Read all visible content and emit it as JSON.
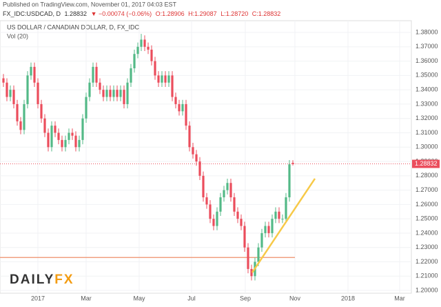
{
  "header": {
    "published": "Published on TradingView.com, November 01, 2017 04:03 EST",
    "symbol": "FX_IDC:USDCAD, D",
    "last": "1.28832",
    "change": "▼ −0.00074 (−0.06%)",
    "open": "O:1.28906",
    "high": "H:1.29087",
    "low": "L:1.28720",
    "close": "C:1.28832"
  },
  "logo": {
    "part1": "DAILY",
    "part2": "FX"
  },
  "chart_data": {
    "type": "candlestick",
    "title": "US DOLLAR / CANADIAN DOLLAR, D, FX_IDC",
    "subtitle": "Vol (20)",
    "up_color": "#53b987",
    "down_color": "#eb4d5c",
    "open": [
      1.348,
      1.345,
      1.335,
      1.34,
      1.33,
      1.318,
      1.312,
      1.33,
      1.35,
      1.356,
      1.345,
      1.33,
      1.32,
      1.31,
      1.3,
      1.315,
      1.31,
      1.305,
      1.3,
      1.305,
      1.31,
      1.308,
      1.3,
      1.305,
      1.32,
      1.335,
      1.345,
      1.356,
      1.345,
      1.34,
      1.335,
      1.34,
      1.335,
      1.34,
      1.335,
      1.34,
      1.33,
      1.345,
      1.355,
      1.365,
      1.37,
      1.375,
      1.37,
      1.368,
      1.36,
      1.35,
      1.345,
      1.35,
      1.345,
      1.35,
      1.335,
      1.33,
      1.325,
      1.33,
      1.315,
      1.3,
      1.295,
      1.29,
      1.28,
      1.265,
      1.26,
      1.25,
      1.245,
      1.255,
      1.265,
      1.27,
      1.275,
      1.265,
      1.255,
      1.25,
      1.245,
      1.23,
      1.215,
      1.21,
      1.22,
      1.23,
      1.24,
      1.245,
      1.24,
      1.25,
      1.255,
      1.25,
      1.25,
      1.265,
      1.28906
    ],
    "high": [
      1.351,
      1.348,
      1.343,
      1.343,
      1.333,
      1.321,
      1.333,
      1.353,
      1.359,
      1.359,
      1.348,
      1.333,
      1.323,
      1.313,
      1.318,
      1.318,
      1.313,
      1.308,
      1.308,
      1.313,
      1.313,
      1.311,
      1.308,
      1.323,
      1.338,
      1.348,
      1.359,
      1.359,
      1.348,
      1.343,
      1.343,
      1.343,
      1.343,
      1.343,
      1.343,
      1.343,
      1.348,
      1.358,
      1.368,
      1.373,
      1.379,
      1.378,
      1.373,
      1.371,
      1.363,
      1.353,
      1.353,
      1.353,
      1.353,
      1.353,
      1.338,
      1.333,
      1.333,
      1.333,
      1.318,
      1.303,
      1.298,
      1.293,
      1.283,
      1.268,
      1.263,
      1.253,
      1.258,
      1.268,
      1.273,
      1.278,
      1.278,
      1.268,
      1.258,
      1.253,
      1.248,
      1.233,
      1.218,
      1.223,
      1.233,
      1.243,
      1.248,
      1.248,
      1.253,
      1.258,
      1.258,
      1.253,
      1.268,
      1.291,
      1.29087
    ],
    "low": [
      1.342,
      1.332,
      1.332,
      1.327,
      1.315,
      1.309,
      1.309,
      1.327,
      1.347,
      1.342,
      1.327,
      1.317,
      1.307,
      1.297,
      1.297,
      1.307,
      1.302,
      1.297,
      1.297,
      1.302,
      1.305,
      1.297,
      1.297,
      1.302,
      1.317,
      1.332,
      1.342,
      1.342,
      1.337,
      1.332,
      1.332,
      1.332,
      1.332,
      1.332,
      1.332,
      1.327,
      1.327,
      1.342,
      1.352,
      1.362,
      1.367,
      1.367,
      1.365,
      1.357,
      1.347,
      1.342,
      1.342,
      1.342,
      1.342,
      1.332,
      1.327,
      1.322,
      1.322,
      1.312,
      1.297,
      1.292,
      1.287,
      1.277,
      1.262,
      1.257,
      1.247,
      1.242,
      1.242,
      1.252,
      1.262,
      1.267,
      1.262,
      1.252,
      1.247,
      1.242,
      1.227,
      1.212,
      1.207,
      1.207,
      1.217,
      1.227,
      1.237,
      1.237,
      1.237,
      1.247,
      1.247,
      1.247,
      1.247,
      1.262,
      1.2872
    ],
    "close": [
      1.345,
      1.335,
      1.34,
      1.33,
      1.318,
      1.312,
      1.33,
      1.35,
      1.356,
      1.345,
      1.33,
      1.32,
      1.31,
      1.3,
      1.315,
      1.31,
      1.305,
      1.3,
      1.305,
      1.31,
      1.308,
      1.3,
      1.305,
      1.32,
      1.335,
      1.345,
      1.356,
      1.345,
      1.34,
      1.335,
      1.34,
      1.335,
      1.34,
      1.335,
      1.34,
      1.33,
      1.345,
      1.355,
      1.365,
      1.37,
      1.375,
      1.37,
      1.368,
      1.36,
      1.35,
      1.345,
      1.35,
      1.345,
      1.35,
      1.335,
      1.33,
      1.325,
      1.33,
      1.315,
      1.3,
      1.295,
      1.29,
      1.28,
      1.265,
      1.26,
      1.25,
      1.245,
      1.255,
      1.265,
      1.27,
      1.275,
      1.265,
      1.255,
      1.25,
      1.245,
      1.23,
      1.215,
      1.21,
      1.22,
      1.23,
      1.24,
      1.245,
      1.24,
      1.25,
      1.255,
      1.25,
      1.25,
      1.265,
      1.288,
      1.28832
    ],
    "xlim": [
      -1,
      118.4
    ],
    "xticks": [
      {
        "value": 10,
        "label": "2017"
      },
      {
        "value": 24,
        "label": "Mar"
      },
      {
        "value": 39.4,
        "label": "May"
      },
      {
        "value": 54.6,
        "label": "Jul"
      },
      {
        "value": 70.2,
        "label": "Sep"
      },
      {
        "value": 84.6,
        "label": "Nov"
      },
      {
        "value": 100,
        "label": "2018"
      },
      {
        "value": 115,
        "label": "Mar"
      }
    ],
    "ylim": [
      1.1981,
      1.3882
    ],
    "yticks": [
      {
        "value": 1.2,
        "label": "1.20000"
      },
      {
        "value": 1.21,
        "label": "1.21000"
      },
      {
        "value": 1.22,
        "label": "1.22000"
      },
      {
        "value": 1.23,
        "label": "1.23000"
      },
      {
        "value": 1.24,
        "label": "1.24000"
      },
      {
        "value": 1.25,
        "label": "1.25000"
      },
      {
        "value": 1.26,
        "label": "1.26000"
      },
      {
        "value": 1.27,
        "label": "1.27000"
      },
      {
        "value": 1.28,
        "label": "1.28000"
      },
      {
        "value": 1.29,
        "label": "1.29000"
      },
      {
        "value": 1.3,
        "label": "1.30000"
      },
      {
        "value": 1.31,
        "label": "1.31000"
      },
      {
        "value": 1.32,
        "label": "1.32000"
      },
      {
        "value": 1.33,
        "label": "1.33000"
      },
      {
        "value": 1.34,
        "label": "1.34000"
      },
      {
        "value": 1.35,
        "label": "1.35000"
      },
      {
        "value": 1.36,
        "label": "1.36000"
      },
      {
        "value": 1.37,
        "label": "1.37000"
      },
      {
        "value": 1.38,
        "label": "1.38000"
      }
    ],
    "grid": true,
    "support_level": 1.223,
    "support_color": "#f0a080",
    "trendline": {
      "x": [
        72.2,
        90.4
      ],
      "y": [
        1.2125,
        1.278
      ],
      "color": "#f7c948"
    }
  }
}
